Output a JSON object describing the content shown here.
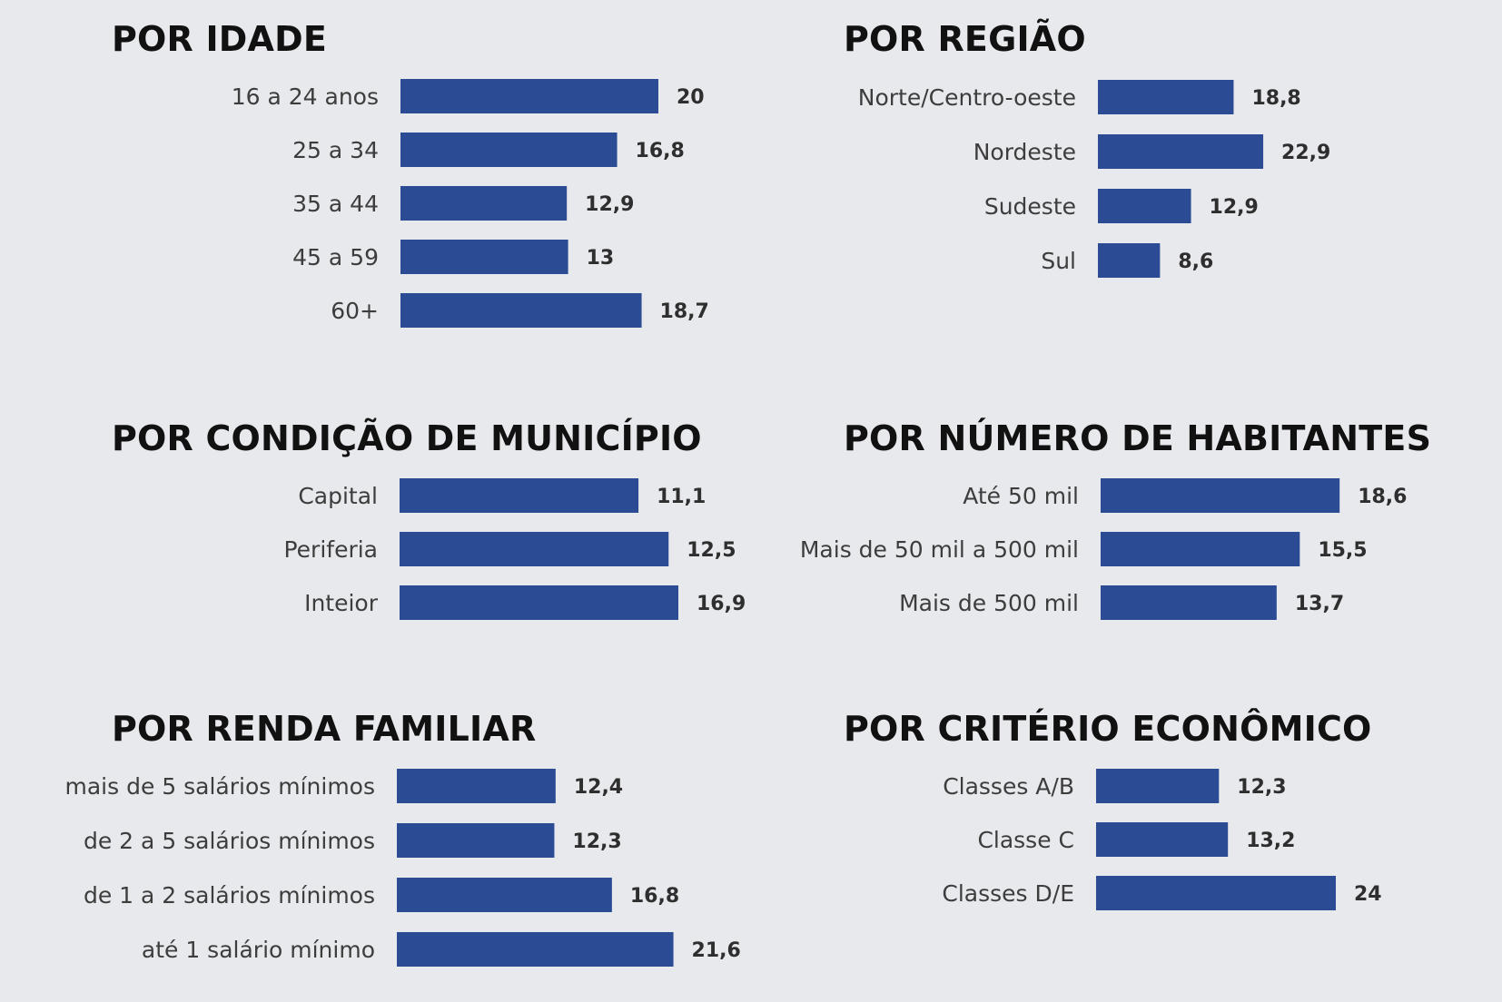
{
  "colors": {
    "background": "#e8e9ed",
    "bar": "#2b4b95",
    "title": "#111111",
    "label": "#3d3d3d"
  },
  "chart_data": [
    {
      "type": "bar",
      "orientation": "horizontal",
      "title": "POR IDADE",
      "categories": [
        "16 a 24 anos",
        "25 a 34",
        "35 a 44",
        "45 a 59",
        "60+"
      ],
      "values": [
        20,
        16.8,
        12.9,
        13,
        18.7
      ],
      "value_labels": [
        "20",
        "16,8",
        "12,9",
        "13",
        "18,7"
      ],
      "xlim": [
        0,
        25
      ],
      "grid": false,
      "legend": "none"
    },
    {
      "type": "bar",
      "orientation": "horizontal",
      "title": "POR REGIÃO",
      "categories": [
        "Norte/Centro-oeste",
        "Nordeste",
        "Sudeste",
        "Sul"
      ],
      "values": [
        18.8,
        22.9,
        12.9,
        8.6
      ],
      "value_labels": [
        "18,8",
        "22,9",
        "12,9",
        "8,6"
      ],
      "xlim": [
        0,
        25
      ],
      "grid": false,
      "legend": "none"
    },
    {
      "type": "bar",
      "orientation": "horizontal",
      "title": "POR CONDIÇÃO DE MUNICÍPIO",
      "categories": [
        "Capital",
        "Periferia",
        "Inteior"
      ],
      "values": [
        11.1,
        12.5,
        16.9
      ],
      "value_labels": [
        "11,1",
        "12,5",
        "16,9"
      ],
      "xlim": [
        0,
        25
      ],
      "grid": false,
      "legend": "none"
    },
    {
      "type": "bar",
      "orientation": "horizontal",
      "title": "POR NÚMERO DE HABITANTES",
      "categories": [
        "Até 50 mil",
        "Mais de 50 mil a 500 mil",
        "Mais de 500 mil"
      ],
      "values": [
        18.6,
        15.5,
        13.7
      ],
      "value_labels": [
        "18,6",
        "15,5",
        "13,7"
      ],
      "xlim": [
        0,
        25
      ],
      "grid": false,
      "legend": "none"
    },
    {
      "type": "bar",
      "orientation": "horizontal",
      "title": "POR RENDA FAMILIAR",
      "categories": [
        "mais de 5 salários mínimos",
        "de 2 a 5 salários mínimos",
        "de 1 a 2 salários mínimos",
        "até 1 salário mínimo"
      ],
      "values": [
        12.4,
        12.3,
        16.8,
        21.6
      ],
      "value_labels": [
        "12,4",
        "12,3",
        "16,8",
        "21,6"
      ],
      "xlim": [
        0,
        25
      ],
      "grid": false,
      "legend": "none"
    },
    {
      "type": "bar",
      "orientation": "horizontal",
      "title": "POR CRITÉRIO ECONÔMICO",
      "categories": [
        "Classes A/B",
        "Classe C",
        "Classes D/E"
      ],
      "values": [
        12.3,
        13.2,
        24
      ],
      "value_labels": [
        "12,3",
        "13,2",
        "24"
      ],
      "xlim": [
        0,
        25
      ],
      "grid": false,
      "legend": "none"
    }
  ]
}
